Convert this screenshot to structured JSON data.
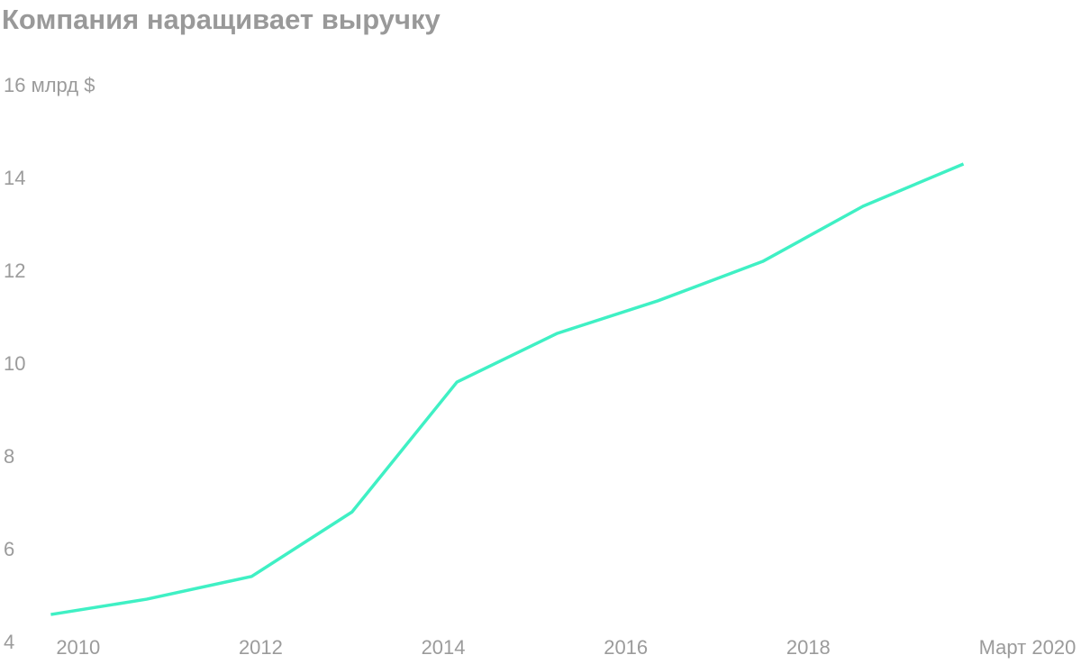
{
  "chart_data": {
    "type": "line",
    "title": "Компания наращивает выручку",
    "x": [
      2009.7,
      2010.75,
      2011.9,
      2013.0,
      2014.15,
      2015.25,
      2016.35,
      2017.5,
      2018.6,
      2019.7
    ],
    "series": [
      {
        "color": "#3ff0c4",
        "values": [
          4.62,
          4.95,
          5.44,
          6.83,
          9.63,
          10.68,
          11.38,
          12.23,
          13.42,
          14.33
        ]
      }
    ],
    "xlim": [
      2009.4,
      2020.8
    ],
    "xticks": [
      2010,
      2012,
      2014,
      2016,
      2018,
      {
        "value": 2020.4,
        "label": "Март 2020"
      }
    ],
    "ylim": [
      4,
      16
    ],
    "yticks": [
      4,
      6,
      8,
      10,
      12,
      14,
      {
        "value": 16,
        "label": "16 млрд $"
      }
    ],
    "grid": false
  }
}
